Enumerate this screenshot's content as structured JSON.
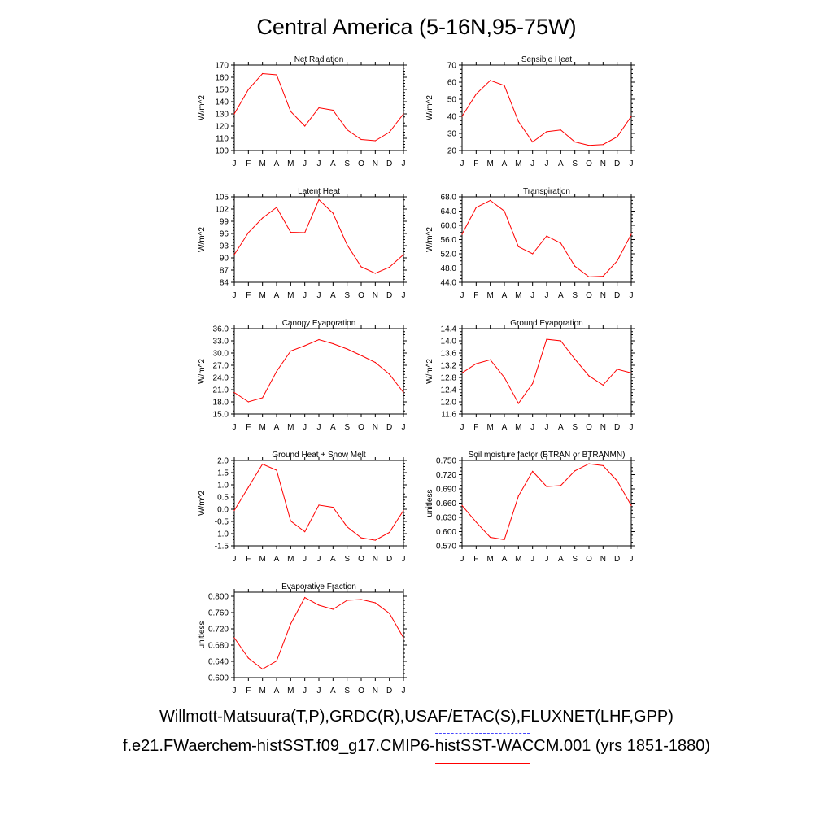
{
  "title": "Central America (5-16N,95-75W)",
  "legend": {
    "obs_label": "Willmott-Matsuura(T,P),GRDC(R),USAF/ETAC(S),FLUXNET(LHF,GPP)",
    "obs_color": "#4444ff",
    "model_label": "f.e21.FWaerchem-histSST.f09_g17.CMIP6-histSST-WACCM.001 (yrs 1851-1880)",
    "model_color": "#ff0000"
  },
  "chart_data": [
    {
      "type": "line",
      "title": "Net Radiation",
      "ylabel": "W/m^2",
      "categories": [
        "J",
        "F",
        "M",
        "A",
        "M",
        "J",
        "J",
        "A",
        "S",
        "O",
        "N",
        "D",
        "J"
      ],
      "yticks": [
        "100",
        "110",
        "120",
        "130",
        "140",
        "150",
        "160",
        "170"
      ],
      "ylim": [
        100,
        170
      ],
      "series": [
        {
          "values": [
            130,
            150,
            163,
            162,
            132,
            120,
            135,
            133,
            117,
            109,
            108,
            115,
            130
          ]
        }
      ]
    },
    {
      "type": "line",
      "title": "Sensible Heat",
      "ylabel": "W/m^2",
      "categories": [
        "J",
        "F",
        "M",
        "A",
        "M",
        "J",
        "J",
        "A",
        "S",
        "O",
        "N",
        "D",
        "J"
      ],
      "yticks": [
        "20",
        "30",
        "40",
        "50",
        "60",
        "70"
      ],
      "ylim": [
        20,
        70
      ],
      "series": [
        {
          "values": [
            40,
            53,
            61,
            58,
            37,
            25,
            31,
            32,
            25,
            23,
            23.5,
            28,
            40
          ]
        }
      ]
    },
    {
      "type": "line",
      "title": "Latent Heat",
      "ylabel": "W/m^2",
      "categories": [
        "J",
        "F",
        "M",
        "A",
        "M",
        "J",
        "J",
        "A",
        "S",
        "O",
        "N",
        "D",
        "J"
      ],
      "yticks": [
        "84",
        "87",
        "90",
        "93",
        "96",
        "99",
        "102",
        "105"
      ],
      "ylim": [
        84,
        105
      ],
      "series": [
        {
          "values": [
            90.8,
            96.2,
            99.8,
            102.4,
            96.3,
            96.2,
            104.3,
            101,
            93.2,
            87.8,
            86.2,
            87.7,
            90.8
          ]
        }
      ]
    },
    {
      "type": "line",
      "title": "Transpiration",
      "ylabel": "W/m^2",
      "categories": [
        "J",
        "F",
        "M",
        "A",
        "M",
        "J",
        "J",
        "A",
        "S",
        "O",
        "N",
        "D",
        "J"
      ],
      "yticks": [
        "44.0",
        "48.0",
        "52.0",
        "56.0",
        "60.0",
        "64.0",
        "68.0"
      ],
      "ylim": [
        44,
        68
      ],
      "series": [
        {
          "values": [
            57.5,
            65,
            67,
            64,
            54,
            52,
            57,
            55,
            48.5,
            45.5,
            45.7,
            50,
            57.5
          ]
        }
      ]
    },
    {
      "type": "line",
      "title": "Canopy Evaporation",
      "ylabel": "W/m^2",
      "categories": [
        "J",
        "F",
        "M",
        "A",
        "M",
        "J",
        "J",
        "A",
        "S",
        "O",
        "N",
        "D",
        "J"
      ],
      "yticks": [
        "15.0",
        "18.0",
        "21.0",
        "24.0",
        "27.0",
        "30.0",
        "33.0",
        "36.0"
      ],
      "ylim": [
        15,
        36
      ],
      "series": [
        {
          "values": [
            20.3,
            18,
            19,
            25.5,
            30.5,
            31.8,
            33.3,
            32.3,
            31,
            29.4,
            27.7,
            24.8,
            20.3
          ]
        }
      ]
    },
    {
      "type": "line",
      "title": "Ground Evaporation",
      "ylabel": "W/m^2",
      "categories": [
        "J",
        "F",
        "M",
        "A",
        "M",
        "J",
        "J",
        "A",
        "S",
        "O",
        "N",
        "D",
        "J"
      ],
      "yticks": [
        "11.6",
        "12.0",
        "12.4",
        "12.8",
        "13.2",
        "13.6",
        "14.0",
        "14.4"
      ],
      "ylim": [
        11.6,
        14.4
      ],
      "series": [
        {
          "values": [
            12.95,
            13.25,
            13.38,
            12.8,
            11.95,
            12.6,
            14.05,
            14.0,
            13.4,
            12.85,
            12.55,
            13.07,
            12.95
          ]
        }
      ]
    },
    {
      "type": "line",
      "title": "Ground Heat + Snow Melt",
      "ylabel": "W/m^2",
      "categories": [
        "J",
        "F",
        "M",
        "A",
        "M",
        "J",
        "J",
        "A",
        "S",
        "O",
        "N",
        "D",
        "J"
      ],
      "yticks": [
        "-1.5",
        "-1.0",
        "-0.5",
        "0.0",
        "0.5",
        "1.0",
        "1.5",
        "2.0"
      ],
      "ylim": [
        -1.5,
        2.0
      ],
      "series": [
        {
          "values": [
            -0.05,
            0.9,
            1.85,
            1.6,
            -0.48,
            -0.92,
            0.17,
            0.08,
            -0.72,
            -1.17,
            -1.27,
            -0.95,
            -0.05
          ]
        }
      ]
    },
    {
      "type": "line",
      "title": "Soil moisture factor (BTRAN or BTRANMN)",
      "ylabel": "unitless",
      "categories": [
        "J",
        "F",
        "M",
        "A",
        "M",
        "J",
        "J",
        "A",
        "S",
        "O",
        "N",
        "D",
        "J"
      ],
      "yticks": [
        "0.570",
        "0.600",
        "0.630",
        "0.660",
        "0.690",
        "0.720",
        "0.750"
      ],
      "ylim": [
        0.57,
        0.75
      ],
      "series": [
        {
          "values": [
            0.655,
            0.62,
            0.588,
            0.583,
            0.675,
            0.727,
            0.695,
            0.697,
            0.728,
            0.743,
            0.739,
            0.707,
            0.655
          ]
        }
      ]
    },
    {
      "type": "line",
      "title": "Evaporative Fraction",
      "ylabel": "unitless",
      "categories": [
        "J",
        "F",
        "M",
        "A",
        "M",
        "J",
        "J",
        "A",
        "S",
        "O",
        "N",
        "D",
        "J"
      ],
      "yticks": [
        "0.600",
        "0.640",
        "0.680",
        "0.720",
        "0.760",
        "0.800"
      ],
      "ylim": [
        0.6,
        0.81
      ],
      "series": [
        {
          "values": [
            0.698,
            0.648,
            0.621,
            0.641,
            0.732,
            0.797,
            0.778,
            0.768,
            0.79,
            0.792,
            0.784,
            0.758,
            0.698
          ]
        }
      ]
    }
  ]
}
